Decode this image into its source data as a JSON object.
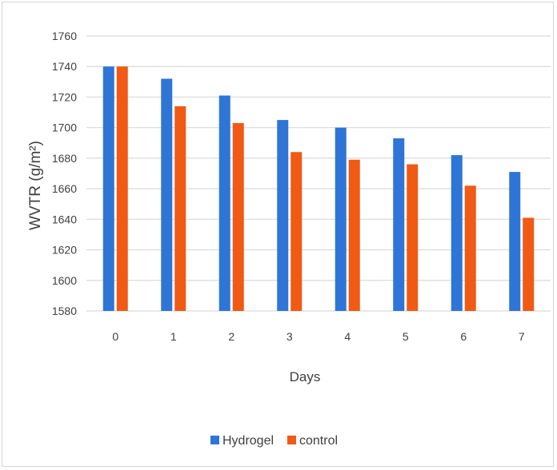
{
  "chart_data": {
    "type": "bar",
    "title": "",
    "xlabel": "Days",
    "ylabel": "WVTR (g/m²)",
    "categories": [
      "0",
      "1",
      "2",
      "3",
      "4",
      "5",
      "6",
      "7"
    ],
    "series": [
      {
        "name": "Hydrogel",
        "color": "#2e75d6",
        "values": [
          1740,
          1732,
          1721,
          1705,
          1700,
          1693,
          1682,
          1671
        ]
      },
      {
        "name": "control",
        "color": "#f05a14",
        "values": [
          1740,
          1714,
          1703,
          1684,
          1679,
          1676,
          1662,
          1641
        ]
      }
    ],
    "ylim": [
      1580,
      1760
    ],
    "yticks": [
      "1580",
      "1600",
      "1620",
      "1640",
      "1660",
      "1680",
      "1700",
      "1720",
      "1740",
      "1760"
    ],
    "grid": true,
    "legend_position": "bottom"
  }
}
